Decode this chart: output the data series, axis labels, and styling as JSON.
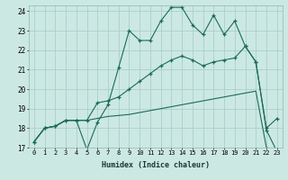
{
  "xlabel": "Humidex (Indice chaleur)",
  "ylabel": "",
  "xlim": [
    -0.5,
    23.5
  ],
  "ylim": [
    17,
    24.3
  ],
  "xticks": [
    0,
    1,
    2,
    3,
    4,
    5,
    6,
    7,
    8,
    9,
    10,
    11,
    12,
    13,
    14,
    15,
    16,
    17,
    18,
    19,
    20,
    21,
    22,
    23
  ],
  "yticks": [
    17,
    18,
    19,
    20,
    21,
    22,
    23,
    24
  ],
  "bg_color": "#cce8e3",
  "line_color": "#1a6b5a",
  "grid_color": "#aacfc9",
  "line1_x": [
    0,
    1,
    2,
    3,
    4,
    5,
    6,
    7,
    8,
    9,
    10,
    11,
    12,
    13,
    14,
    15,
    16,
    17,
    18,
    19,
    20,
    21,
    22,
    23
  ],
  "line1_y": [
    17.3,
    18.0,
    18.1,
    18.4,
    18.4,
    16.9,
    18.3,
    19.2,
    21.1,
    23.0,
    22.5,
    22.5,
    23.5,
    24.2,
    24.2,
    23.3,
    22.8,
    23.8,
    22.8,
    23.5,
    22.2,
    21.4,
    18.0,
    18.5
  ],
  "line2_x": [
    0,
    1,
    2,
    3,
    4,
    5,
    6,
    7,
    8,
    9,
    10,
    11,
    12,
    13,
    14,
    15,
    16,
    17,
    18,
    19,
    20,
    21,
    22,
    23
  ],
  "line2_y": [
    17.3,
    18.0,
    18.1,
    18.4,
    18.4,
    18.4,
    19.3,
    19.4,
    19.6,
    20.0,
    20.4,
    20.8,
    21.2,
    21.5,
    21.7,
    21.5,
    21.2,
    21.4,
    21.5,
    21.6,
    22.2,
    21.4,
    17.9,
    16.8
  ],
  "line3_x": [
    0,
    1,
    2,
    3,
    4,
    5,
    6,
    7,
    8,
    9,
    10,
    11,
    12,
    13,
    14,
    15,
    16,
    17,
    18,
    19,
    20,
    21,
    22,
    23
  ],
  "line3_y": [
    17.3,
    18.0,
    18.1,
    18.4,
    18.4,
    18.4,
    18.5,
    18.6,
    18.65,
    18.7,
    18.8,
    18.9,
    19.0,
    19.1,
    19.2,
    19.3,
    19.4,
    19.5,
    19.6,
    19.7,
    19.8,
    19.9,
    17.0,
    16.9
  ]
}
